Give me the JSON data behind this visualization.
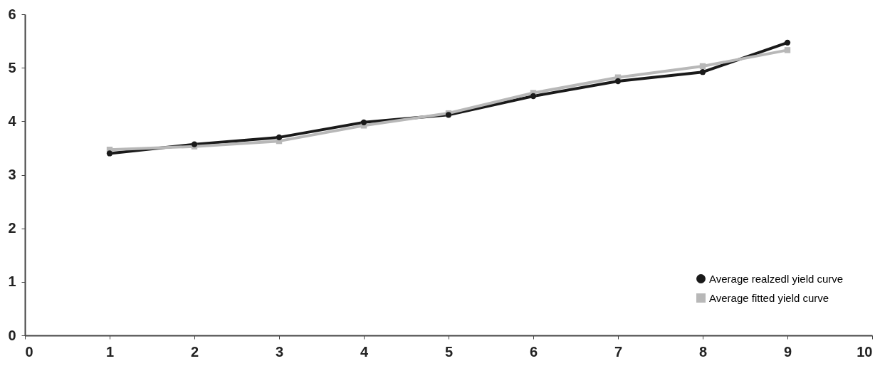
{
  "chart_data": {
    "type": "line",
    "x": [
      1,
      2,
      3,
      4,
      5,
      6,
      7,
      8,
      9
    ],
    "series": [
      {
        "name": "Average realzedl yield curve",
        "color": "#1a1a1a",
        "marker": "circle",
        "values": [
          3.4,
          3.57,
          3.7,
          3.98,
          4.12,
          4.47,
          4.75,
          4.92,
          5.47
        ]
      },
      {
        "name": "Average fitted yield curve",
        "color": "#b8b8b8",
        "marker": "square",
        "values": [
          3.47,
          3.53,
          3.63,
          3.92,
          4.15,
          4.53,
          4.82,
          5.03,
          5.33
        ]
      }
    ],
    "xlim": [
      0,
      10
    ],
    "xticks": [
      0,
      1,
      2,
      3,
      4,
      5,
      6,
      7,
      8,
      9,
      10
    ],
    "ylim": [
      0,
      6
    ],
    "yticks": [
      0,
      1,
      2,
      3,
      4,
      5,
      6
    ],
    "grid": false,
    "legend": "bottom right",
    "line_style": "solid"
  }
}
